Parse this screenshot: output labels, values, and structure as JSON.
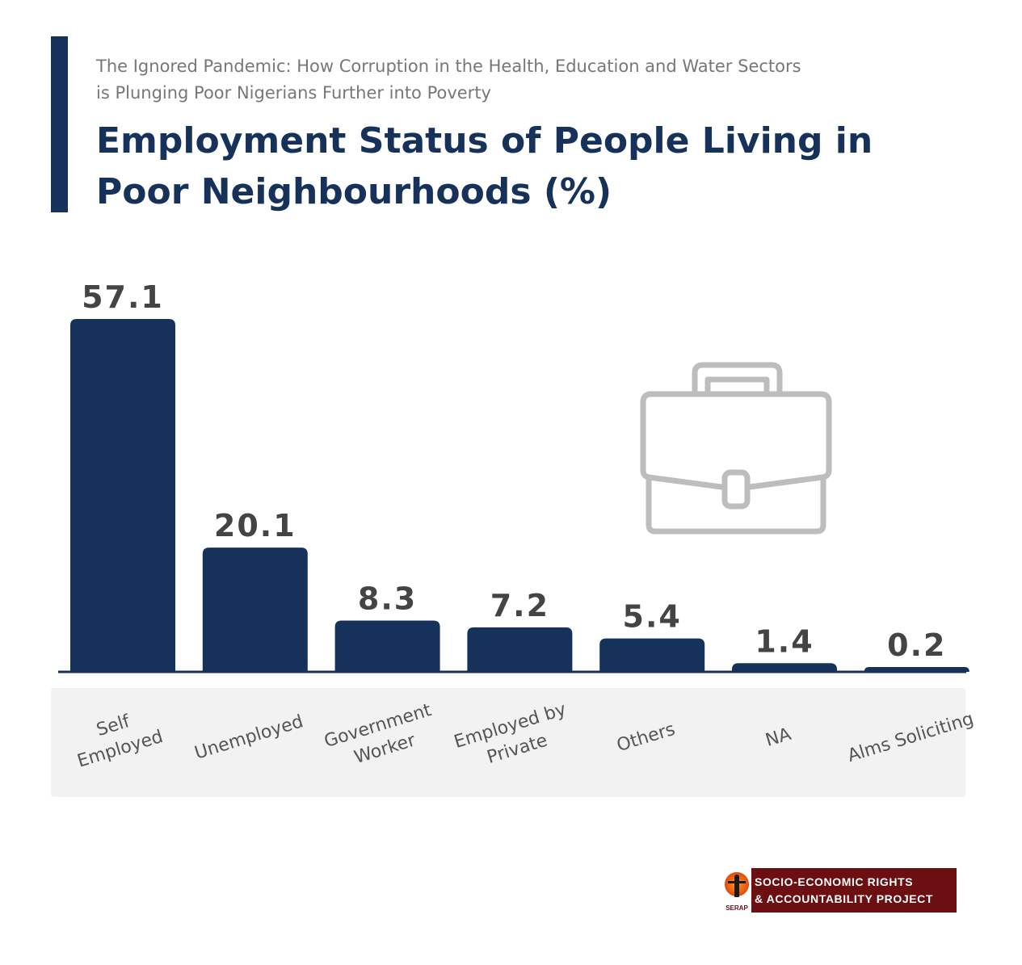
{
  "header": {
    "subtitle_line1": "The Ignored Pandemic: How Corruption in the Health, Education and Water Sectors",
    "subtitle_line2": "is Plunging Poor Nigerians Further into Poverty",
    "title_line1": "Employment Status of People Living in",
    "title_line2": "Poor Neighbourhoods (%)"
  },
  "colors": {
    "bar": "#17325a",
    "value_label": "#444444",
    "category_label": "#555555",
    "category_band": "#f2f2f2",
    "icon": "#bdbdbd"
  },
  "chart_data": {
    "type": "bar",
    "title": "Employment Status of People Living in Poor Neighbourhoods (%)",
    "categories": [
      [
        "Self",
        "Employed"
      ],
      [
        "Unemployed"
      ],
      [
        "Government",
        "Worker"
      ],
      [
        "Employed by",
        "Private"
      ],
      [
        "Others"
      ],
      [
        "NA"
      ],
      [
        "Alms Soliciting"
      ]
    ],
    "values": [
      57.1,
      20.1,
      8.3,
      7.2,
      5.4,
      1.4,
      0.2
    ],
    "value_labels": [
      "57.1",
      "20.1",
      "8.3",
      "7.2",
      "5.4",
      "1.4",
      "0.2"
    ],
    "ylim": [
      0,
      57.1
    ],
    "grid": false,
    "decoration_icon": "briefcase-icon"
  },
  "logo": {
    "mark_text": "SERAP",
    "line1": "SOCIO-ECONOMIC RIGHTS",
    "line2": "& ACCOUNTABILITY PROJECT"
  }
}
